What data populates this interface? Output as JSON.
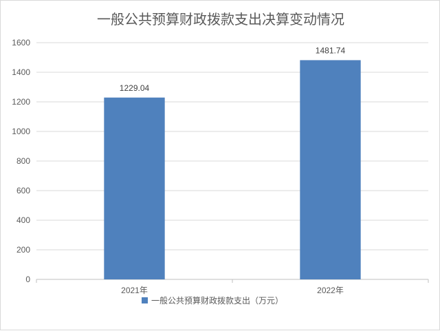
{
  "chart_data": {
    "type": "bar",
    "title": "一般公共预算财政拨款支出决算变动情况",
    "categories": [
      "2021年",
      "2022年"
    ],
    "series": [
      {
        "name": "一般公共预算财政拨款支出（万元）",
        "values": [
          1229.04,
          1481.74
        ],
        "data_labels": [
          "1229.04",
          "1481.74"
        ],
        "color": "#4f81bd"
      }
    ],
    "ylim": [
      0,
      1600
    ],
    "yticks": [
      0,
      200,
      400,
      600,
      800,
      1000,
      1200,
      1400,
      1600
    ],
    "ytick_labels": [
      "0",
      "200",
      "400",
      "600",
      "800",
      "1000",
      "1200",
      "1400",
      "1600"
    ],
    "grid": true,
    "legend_position": "bottom"
  }
}
